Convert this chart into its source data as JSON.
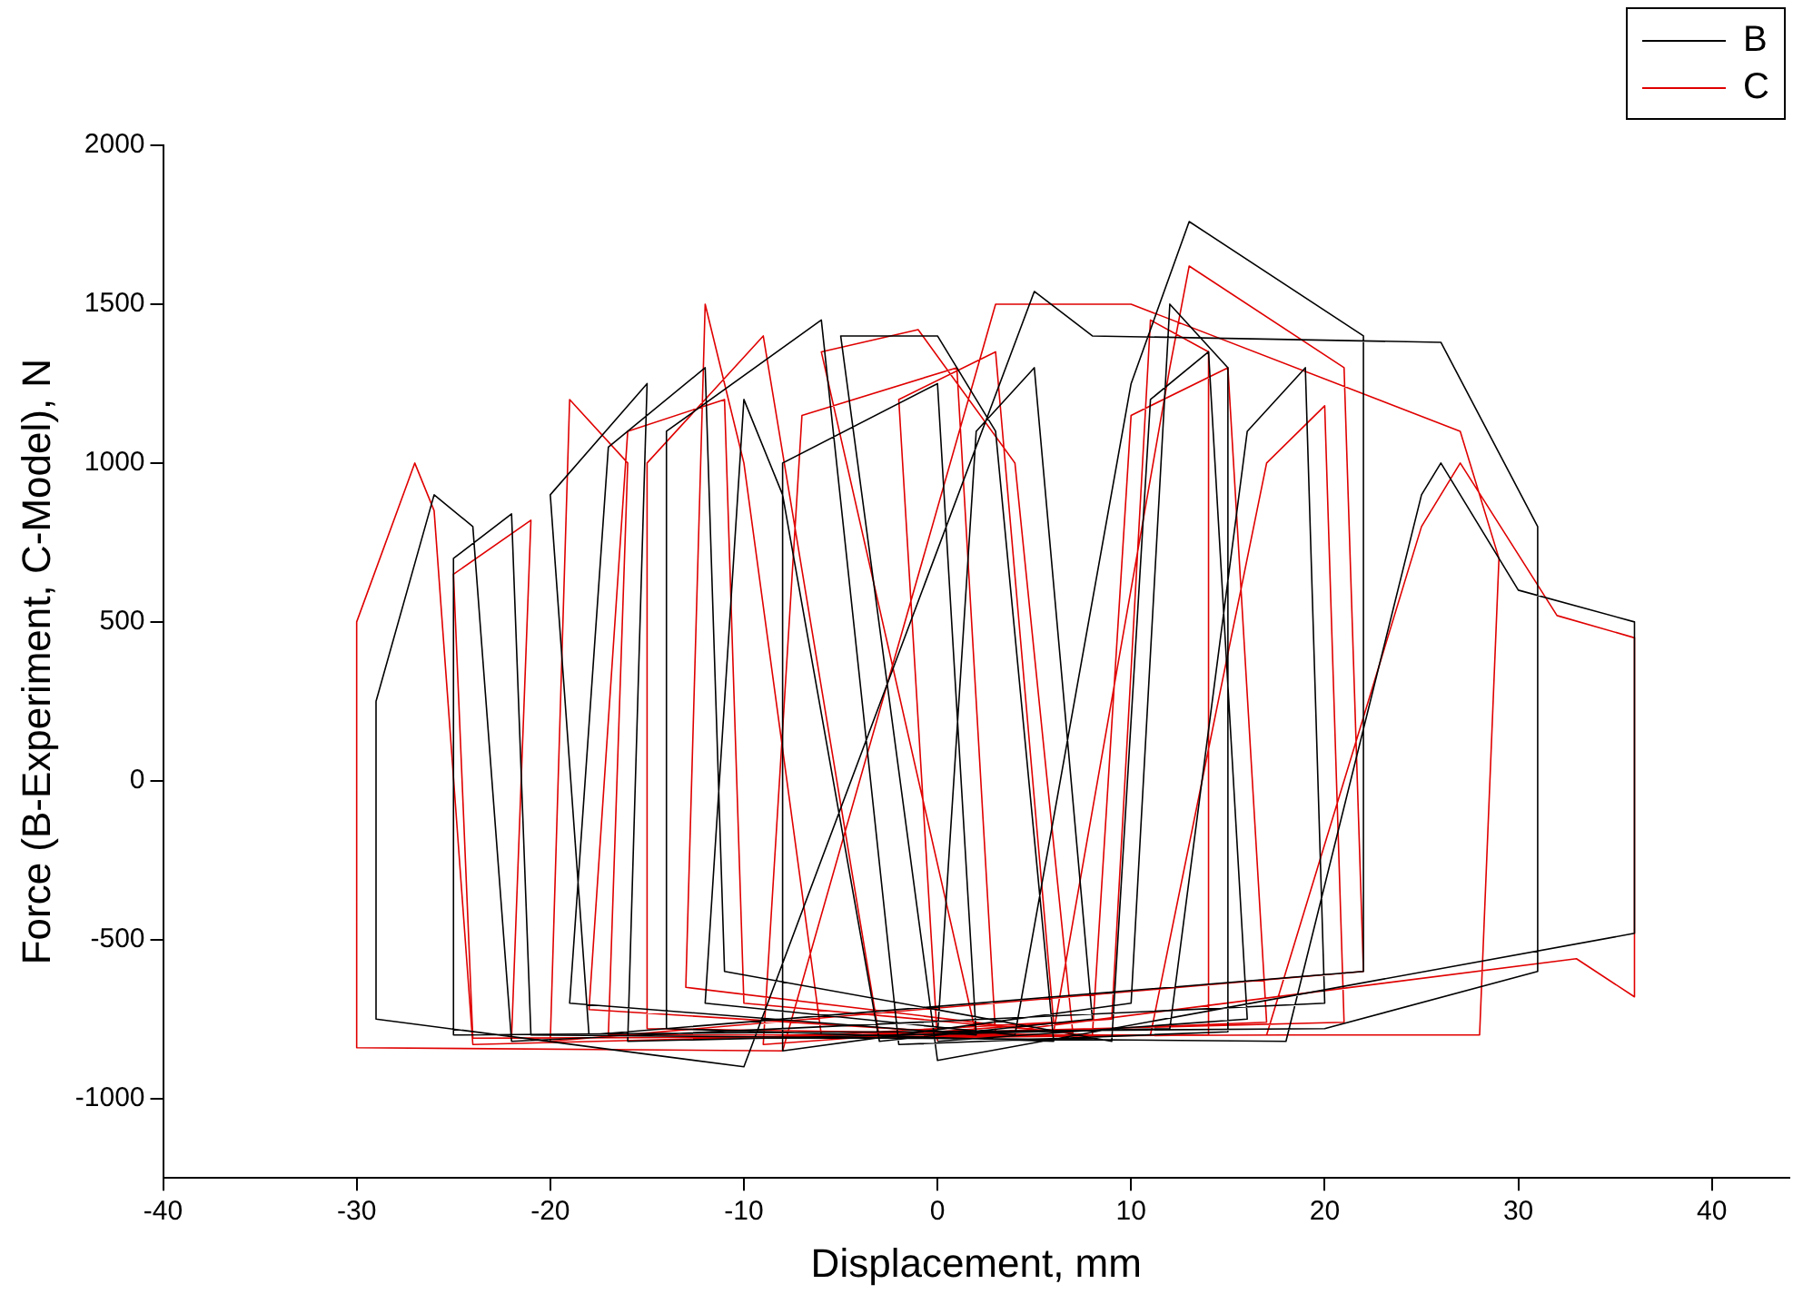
{
  "chart_data": {
    "type": "line",
    "xlabel": "Displacement, mm",
    "ylabel": "Force (B-Experiment, C-Model), N",
    "xlim": [
      -40,
      44
    ],
    "xticks": [
      -40,
      -30,
      -20,
      -10,
      0,
      10,
      20,
      30,
      40
    ],
    "ylim": [
      -1250,
      2000
    ],
    "yticks": [
      -1000,
      -500,
      0,
      500,
      1000,
      1500,
      2000
    ],
    "grid": false,
    "legend": "top right",
    "marker": "none",
    "line_style": "solid",
    "series": [
      {
        "name": "B",
        "color": "#000000",
        "x": [
          0,
          2,
          5,
          8,
          -3,
          -8,
          -10,
          -12,
          4,
          10,
          13,
          22,
          22,
          -18,
          -20,
          -15,
          -16,
          12,
          16,
          19,
          20,
          -22,
          -24,
          -26,
          -29,
          -29,
          -10,
          5,
          8,
          26,
          31,
          31,
          20,
          -25,
          -25,
          -22,
          -21,
          18,
          25,
          26,
          30,
          36,
          36,
          0,
          -5,
          0,
          3,
          6,
          -14,
          -14,
          -6,
          -2,
          15,
          15,
          12,
          10,
          -8,
          -8,
          0,
          2,
          -19,
          -17,
          -12,
          -11,
          9,
          11,
          14,
          16,
          0
        ],
        "values": [
          -800,
          1100,
          1300,
          -750,
          -820,
          900,
          1200,
          -700,
          -800,
          1250,
          1760,
          1400,
          -600,
          -800,
          900,
          1250,
          -820,
          -780,
          1100,
          1300,
          -700,
          -820,
          800,
          900,
          250,
          -750,
          -900,
          1540,
          1400,
          1380,
          800,
          -600,
          -780,
          -800,
          700,
          840,
          -800,
          -820,
          900,
          1000,
          600,
          500,
          -480,
          -880,
          1400,
          1400,
          1100,
          -820,
          -780,
          1100,
          1450,
          -830,
          -790,
          1300,
          1500,
          -700,
          -850,
          1000,
          1250,
          -800,
          -700,
          1050,
          1300,
          -600,
          -820,
          1200,
          1350,
          -750,
          -820
        ]
      },
      {
        "name": "C",
        "color": "#e00000",
        "x": [
          0,
          -2,
          3,
          6,
          -6,
          -10,
          -12,
          -13,
          6,
          12,
          13,
          21,
          22,
          -20,
          -19,
          -16,
          -17,
          11,
          17,
          20,
          21,
          -24,
          -26,
          -27,
          -30,
          -30,
          -8,
          3,
          10,
          27,
          29,
          28,
          18,
          -24,
          -25,
          -21,
          -22,
          17,
          25,
          27,
          32,
          36,
          36,
          33,
          2,
          -6,
          -1,
          4,
          7,
          -15,
          -15,
          -9,
          -3,
          14,
          14,
          11,
          9,
          -9,
          -7,
          1,
          3,
          -18,
          -16,
          -11,
          -10,
          8,
          10,
          15,
          17,
          0
        ],
        "values": [
          -820,
          1200,
          1350,
          -760,
          -800,
          1000,
          1500,
          -650,
          -790,
          1300,
          1620,
          1300,
          -600,
          -820,
          1200,
          1000,
          -800,
          -800,
          1000,
          1180,
          -760,
          -830,
          850,
          1000,
          500,
          -840,
          -850,
          1500,
          1500,
          1100,
          700,
          -800,
          -800,
          -810,
          650,
          820,
          -810,
          -800,
          800,
          1000,
          520,
          450,
          -680,
          -560,
          -800,
          1350,
          1420,
          1000,
          -800,
          -780,
          1000,
          1400,
          -810,
          -800,
          1350,
          1450,
          -750,
          -830,
          1150,
          1300,
          -800,
          -720,
          1100,
          1200,
          -700,
          -800,
          1150,
          1300,
          -760,
          -800
        ]
      }
    ]
  }
}
